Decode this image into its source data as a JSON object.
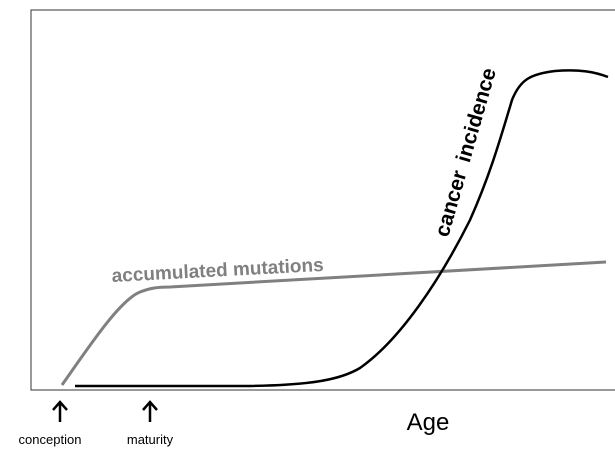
{
  "curves": {
    "mutations_label": "accumulated mutations",
    "incidence_label": "cancer incidence"
  },
  "axis": {
    "x_label": "Age",
    "markers": [
      "conception",
      "maturity"
    ]
  }
}
